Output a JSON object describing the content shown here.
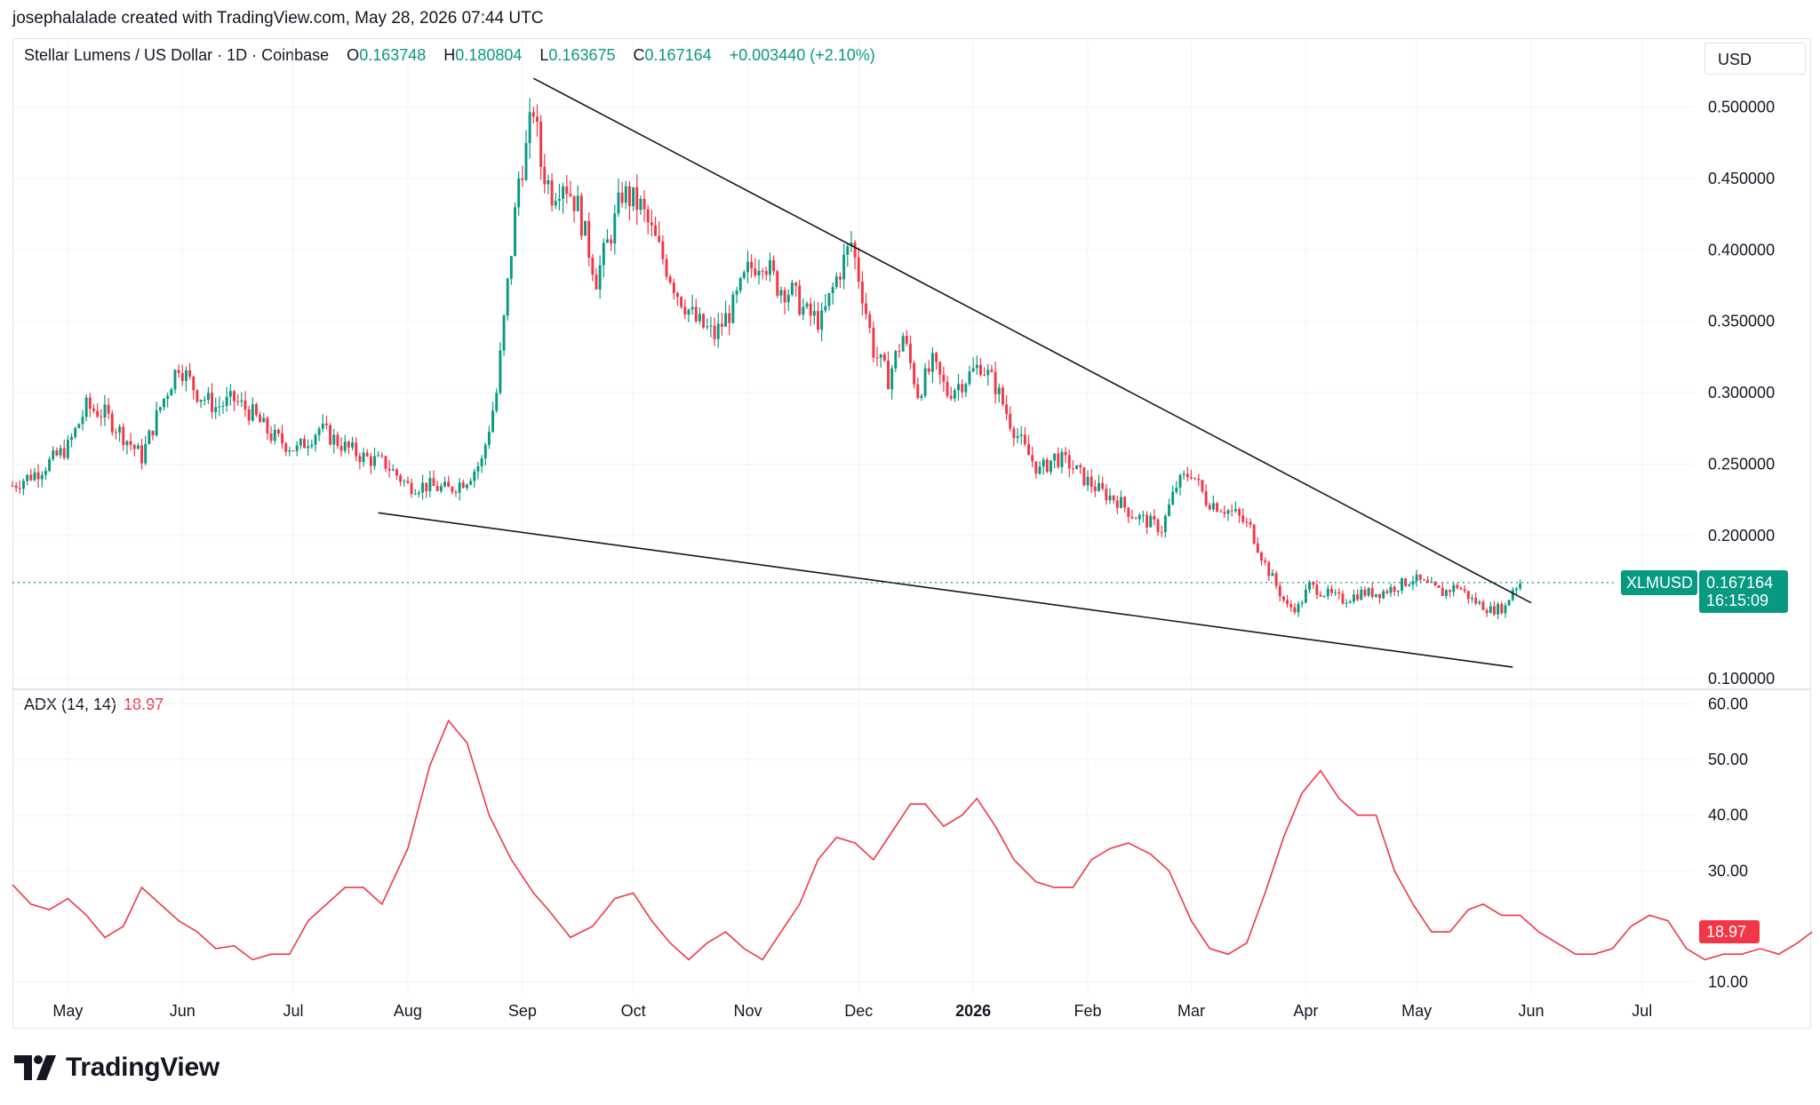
{
  "header": {
    "credit": "josephalalade created with TradingView.com, May 28, 2026 07:44 UTC"
  },
  "legend": {
    "symbol": "Stellar Lumens / US Dollar · 1D · Coinbase",
    "o_label": "O",
    "o_value": "0.163748",
    "h_label": "H",
    "h_value": "0.180804",
    "l_label": "L",
    "l_value": "0.163675",
    "c_label": "C",
    "c_value": "0.167164",
    "change": "+0.003440 (+2.10%)"
  },
  "currency_button": "USD",
  "price_tag": {
    "symbol": "XLMUSD",
    "price": "0.167164",
    "countdown": "16:15:09"
  },
  "adx": {
    "name": "ADX (14, 14)",
    "value": "18.97"
  },
  "brand": {
    "name": "TradingView"
  },
  "colors": {
    "up": "#089981",
    "down": "#f23645",
    "adx": "#f23645",
    "grid": "#f0f3fa",
    "trendline": "#131722"
  },
  "chart_data": [
    {
      "type": "candlestick",
      "title": "Stellar Lumens / US Dollar · 1D · Coinbase",
      "y_axis_side": "right",
      "ylim": [
        0.095,
        0.54
      ],
      "y_ticks": [
        "0.100000",
        "0.200000",
        "0.250000",
        "0.300000",
        "0.350000",
        "0.400000",
        "0.450000",
        "0.500000"
      ],
      "x_ticks": [
        "May",
        "Jun",
        "Jul",
        "Aug",
        "Sep",
        "Oct",
        "Nov",
        "Dec",
        "2026",
        "Feb",
        "Mar",
        "Apr",
        "May",
        "Jun",
        "Jul"
      ],
      "x_tick_days": [
        0,
        31,
        61,
        92,
        123,
        153,
        184,
        214,
        245,
        276,
        304,
        335,
        365,
        396,
        426
      ],
      "x_domain_days": [
        -15,
        440
      ],
      "bar_days": [
        -15,
        393
      ],
      "close_path": [
        [
          -15,
          0.235
        ],
        [
          -8,
          0.245
        ],
        [
          0,
          0.262
        ],
        [
          5,
          0.29
        ],
        [
          10,
          0.285
        ],
        [
          15,
          0.27
        ],
        [
          20,
          0.255
        ],
        [
          25,
          0.29
        ],
        [
          30,
          0.32
        ],
        [
          35,
          0.3
        ],
        [
          40,
          0.29
        ],
        [
          45,
          0.295
        ],
        [
          50,
          0.285
        ],
        [
          55,
          0.27
        ],
        [
          62,
          0.26
        ],
        [
          68,
          0.275
        ],
        [
          75,
          0.262
        ],
        [
          80,
          0.255
        ],
        [
          86,
          0.25
        ],
        [
          92,
          0.235
        ],
        [
          97,
          0.235
        ],
        [
          103,
          0.232
        ],
        [
          108,
          0.24
        ],
        [
          112,
          0.252
        ],
        [
          116,
          0.3
        ],
        [
          118,
          0.35
        ],
        [
          120,
          0.4
        ],
        [
          122,
          0.45
        ],
        [
          124,
          0.47
        ],
        [
          126,
          0.5
        ],
        [
          128,
          0.46
        ],
        [
          131,
          0.44
        ],
        [
          134,
          0.45
        ],
        [
          138,
          0.43
        ],
        [
          143,
          0.38
        ],
        [
          148,
          0.42
        ],
        [
          150,
          0.44
        ],
        [
          155,
          0.43
        ],
        [
          160,
          0.4
        ],
        [
          165,
          0.37
        ],
        [
          170,
          0.35
        ],
        [
          175,
          0.34
        ],
        [
          180,
          0.36
        ],
        [
          184,
          0.385
        ],
        [
          188,
          0.395
        ],
        [
          192,
          0.375
        ],
        [
          196,
          0.37
        ],
        [
          200,
          0.355
        ],
        [
          204,
          0.35
        ],
        [
          208,
          0.38
        ],
        [
          212,
          0.405
        ],
        [
          215,
          0.37
        ],
        [
          218,
          0.33
        ],
        [
          222,
          0.31
        ],
        [
          226,
          0.34
        ],
        [
          230,
          0.3
        ],
        [
          234,
          0.32
        ],
        [
          238,
          0.3
        ],
        [
          243,
          0.31
        ],
        [
          247,
          0.32
        ],
        [
          251,
          0.305
        ],
        [
          255,
          0.28
        ],
        [
          259,
          0.26
        ],
        [
          263,
          0.245
        ],
        [
          267,
          0.255
        ],
        [
          271,
          0.25
        ],
        [
          275,
          0.24
        ],
        [
          280,
          0.23
        ],
        [
          284,
          0.225
        ],
        [
          288,
          0.215
        ],
        [
          292,
          0.21
        ],
        [
          296,
          0.205
        ],
        [
          300,
          0.235
        ],
        [
          304,
          0.245
        ],
        [
          308,
          0.225
        ],
        [
          312,
          0.22
        ],
        [
          316,
          0.215
        ],
        [
          320,
          0.205
        ],
        [
          324,
          0.18
        ],
        [
          327,
          0.165
        ],
        [
          330,
          0.15
        ],
        [
          333,
          0.15
        ],
        [
          336,
          0.165
        ],
        [
          340,
          0.16
        ],
        [
          345,
          0.155
        ],
        [
          350,
          0.16
        ],
        [
          355,
          0.16
        ],
        [
          360,
          0.165
        ],
        [
          364,
          0.17
        ],
        [
          368,
          0.165
        ],
        [
          372,
          0.16
        ],
        [
          376,
          0.165
        ],
        [
          380,
          0.155
        ],
        [
          385,
          0.148
        ],
        [
          389,
          0.15
        ],
        [
          391,
          0.163
        ],
        [
          393,
          0.167
        ]
      ]
    },
    {
      "type": "line",
      "title": "ADX (14, 14)",
      "ylim": [
        8,
        62
      ],
      "y_ticks": [
        "10.00",
        "30.00",
        "40.00",
        "50.00",
        "60.00"
      ],
      "value_label": "18.97",
      "points": [
        [
          -15,
          27.5
        ],
        [
          -10,
          24
        ],
        [
          -5,
          23
        ],
        [
          0,
          25
        ],
        [
          5,
          22
        ],
        [
          10,
          18
        ],
        [
          15,
          20
        ],
        [
          20,
          27
        ],
        [
          25,
          24
        ],
        [
          30,
          21
        ],
        [
          35,
          19
        ],
        [
          40,
          16
        ],
        [
          45,
          16.5
        ],
        [
          50,
          14
        ],
        [
          55,
          15
        ],
        [
          60,
          15
        ],
        [
          65,
          21
        ],
        [
          70,
          24
        ],
        [
          75,
          27
        ],
        [
          80,
          27
        ],
        [
          85,
          24
        ],
        [
          92,
          34
        ],
        [
          98,
          49
        ],
        [
          103,
          57
        ],
        [
          108,
          53
        ],
        [
          114,
          40
        ],
        [
          120,
          32
        ],
        [
          126,
          26
        ],
        [
          130,
          23
        ],
        [
          136,
          18
        ],
        [
          142,
          20
        ],
        [
          148,
          25
        ],
        [
          153,
          26
        ],
        [
          158,
          21
        ],
        [
          163,
          17
        ],
        [
          168,
          14
        ],
        [
          173,
          17
        ],
        [
          178,
          19
        ],
        [
          183,
          16
        ],
        [
          188,
          14
        ],
        [
          193,
          19
        ],
        [
          198,
          24
        ],
        [
          203,
          32
        ],
        [
          208,
          36
        ],
        [
          213,
          35
        ],
        [
          218,
          32
        ],
        [
          223,
          37
        ],
        [
          228,
          42
        ],
        [
          232,
          42
        ],
        [
          237,
          38
        ],
        [
          242,
          40
        ],
        [
          246,
          43
        ],
        [
          251,
          38
        ],
        [
          256,
          32
        ],
        [
          262,
          28
        ],
        [
          267,
          27
        ],
        [
          272,
          27
        ],
        [
          277,
          32
        ],
        [
          282,
          34
        ],
        [
          287,
          35
        ],
        [
          293,
          33
        ],
        [
          298,
          30
        ],
        [
          304,
          21
        ],
        [
          309,
          16
        ],
        [
          314,
          15
        ],
        [
          319,
          17
        ],
        [
          324,
          26
        ],
        [
          329,
          36
        ],
        [
          334,
          44
        ],
        [
          339,
          48
        ],
        [
          344,
          43
        ],
        [
          349,
          40
        ],
        [
          354,
          40
        ],
        [
          359,
          30
        ],
        [
          364,
          24
        ],
        [
          369,
          19
        ],
        [
          374,
          19
        ],
        [
          379,
          23
        ],
        [
          383,
          24
        ],
        [
          388,
          22
        ],
        [
          393,
          22
        ],
        [
          398,
          19
        ],
        [
          403,
          17
        ],
        [
          408,
          15
        ],
        [
          413,
          15
        ],
        [
          418,
          16
        ],
        [
          423,
          20
        ],
        [
          428,
          22
        ],
        [
          433,
          21
        ],
        [
          438,
          16
        ],
        [
          443,
          14
        ],
        [
          448,
          15
        ],
        [
          453,
          15
        ],
        [
          458,
          16
        ],
        [
          463,
          15
        ],
        [
          468,
          17
        ],
        [
          472,
          19
        ]
      ]
    }
  ]
}
